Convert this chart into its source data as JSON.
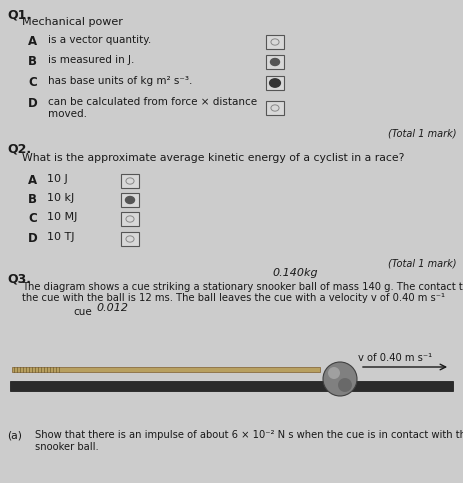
{
  "bg_color": "#cccccc",
  "text_color": "#1a1a1a",
  "q1_label": "Q1.",
  "q1_subtitle": "Mechanical power",
  "q1_options": [
    [
      "A",
      "is a vector quantity."
    ],
    [
      "B",
      "is measured in J."
    ],
    [
      "C",
      "has base units of kg m² s⁻³."
    ],
    [
      "D",
      "can be calculated from force × distance\nmoved."
    ]
  ],
  "q1_selected": 2,
  "q1_total": "(Total 1 mark)",
  "q2_label": "Q2.",
  "q2_question": "What is the approximate average kinetic energy of a cyclist in a race?",
  "q2_options": [
    [
      "A",
      "10 J"
    ],
    [
      "B",
      "10 kJ"
    ],
    [
      "C",
      "10 MJ"
    ],
    [
      "D",
      "10 TJ"
    ]
  ],
  "q2_selected": 1,
  "q2_total": "(Total 1 mark)",
  "q3_label": "Q3.",
  "q3_handwriting1": "0.140kg",
  "q3_text1": "The diagram shows a cue striking a stationary snooker ball of mass 140 g. The contact time of",
  "q3_text2": "the cue with the ball is 12 ms. The ball leaves the cue with a velocity v of 0.40 m s⁻¹",
  "q3_handwriting2": "0.012",
  "q3_cue_label": "cue",
  "q3_velocity_label": "v of 0.40 m s⁻¹",
  "q3a_label": "(a)",
  "q3a_text": "Show that there is an impulse of about 6 × 10⁻² N s when the cue is in contact with the\nsnooker ball."
}
